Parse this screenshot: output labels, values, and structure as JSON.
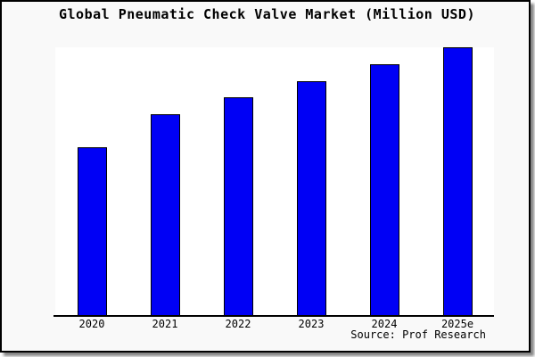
{
  "chart_data": {
    "type": "bar",
    "title": "Global Pneumatic Check Valve Market (Million USD)",
    "categories": [
      "2020",
      "2021",
      "2022",
      "2023",
      "2024",
      "2025e"
    ],
    "values": [
      190,
      227,
      246,
      264,
      283,
      302
    ],
    "values_note": "No y-axis scale or data labels shown in the image; values are relative estimates proportional to measured bar heights",
    "xlabel": "",
    "ylabel": "",
    "ylim": [
      0,
      302
    ],
    "grid": false,
    "legend": false,
    "y_axis_visible": false,
    "colors": {
      "bar_fill": "#0000F5",
      "bar_border": "#000000",
      "canvas_background": "#F9F9F9",
      "plot_background": "#FFFFFF",
      "frame_border": "#000000",
      "text": "#000000"
    }
  },
  "footer": {
    "source": "Source: Prof Research"
  }
}
